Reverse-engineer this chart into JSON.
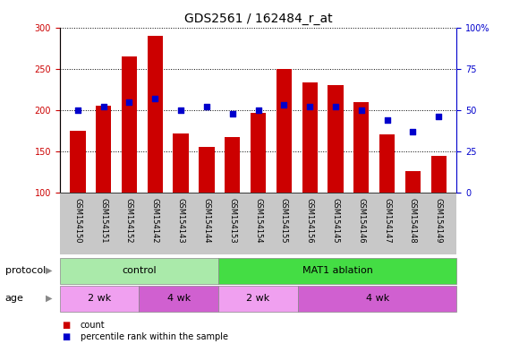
{
  "title": "GDS2561 / 162484_r_at",
  "categories": [
    "GSM154150",
    "GSM154151",
    "GSM154152",
    "GSM154142",
    "GSM154143",
    "GSM154144",
    "GSM154153",
    "GSM154154",
    "GSM154155",
    "GSM154156",
    "GSM154145",
    "GSM154146",
    "GSM154147",
    "GSM154148",
    "GSM154149"
  ],
  "bar_values": [
    175,
    205,
    265,
    290,
    172,
    155,
    167,
    197,
    250,
    233,
    230,
    210,
    171,
    126,
    145
  ],
  "dot_values": [
    50,
    52,
    55,
    57,
    50,
    52,
    48,
    50,
    53,
    52,
    52,
    50,
    44,
    37,
    46
  ],
  "bar_color": "#cc0000",
  "dot_color": "#0000cc",
  "ylim_left": [
    100,
    300
  ],
  "ylim_right": [
    0,
    100
  ],
  "yticks_left": [
    100,
    150,
    200,
    250,
    300
  ],
  "yticks_right": [
    0,
    25,
    50,
    75,
    100
  ],
  "plot_bg": "#ffffff",
  "protocol_groups": [
    {
      "label": "control",
      "start": 0,
      "end": 6,
      "color": "#aaeaaa"
    },
    {
      "label": "MAT1 ablation",
      "start": 6,
      "end": 15,
      "color": "#44dd44"
    }
  ],
  "age_groups": [
    {
      "label": "2 wk",
      "start": 0,
      "end": 3,
      "color": "#f0a0f0"
    },
    {
      "label": "4 wk",
      "start": 3,
      "end": 6,
      "color": "#d060d0"
    },
    {
      "label": "2 wk",
      "start": 6,
      "end": 9,
      "color": "#f0a0f0"
    },
    {
      "label": "4 wk",
      "start": 9,
      "end": 15,
      "color": "#d060d0"
    }
  ],
  "protocol_label": "protocol",
  "age_label": "age",
  "legend_bar_label": "count",
  "legend_dot_label": "percentile rank within the sample",
  "title_fontsize": 10,
  "tick_fontsize": 7,
  "cat_fontsize": 6,
  "row_label_fontsize": 8,
  "row_text_fontsize": 8
}
